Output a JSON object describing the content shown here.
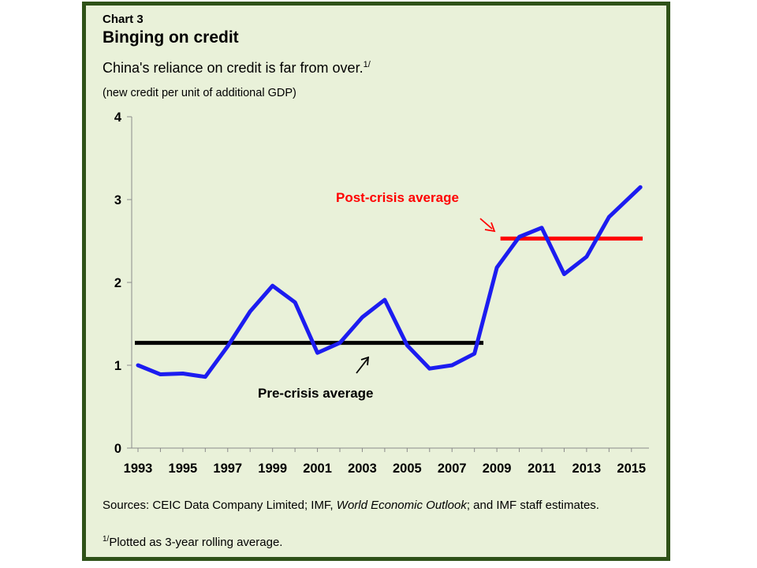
{
  "chart_data": {
    "type": "line",
    "chart_label": "Chart 3",
    "title": "Binging on credit",
    "subtitle": "China's reliance  on credit is far from over.",
    "subtitle_footnote_mark": "1/",
    "ylabel": "(new credit per unit of additional GDP)",
    "xlabel": "",
    "ylim": [
      0,
      4
    ],
    "yticks": [
      "0",
      "1",
      "2",
      "3",
      "4"
    ],
    "xlim": [
      1993,
      2015.5
    ],
    "xtick_labels": [
      "1993",
      "1995",
      "1997",
      "1999",
      "2001",
      "2003",
      "2005",
      "2007",
      "2009",
      "2011",
      "2013",
      "2015"
    ],
    "grid": false,
    "series": [
      {
        "name": "New credit per unit of additional GDP",
        "color": "#1c1cf0",
        "x": [
          1993,
          1994,
          1995,
          1996,
          1997,
          1998,
          1999,
          2000,
          2001,
          2002,
          2003,
          2004,
          2005,
          2006,
          2007,
          2008,
          2009,
          2010,
          2011,
          2012,
          2013,
          2014,
          2015.4
        ],
        "values": [
          1.0,
          0.89,
          0.9,
          0.86,
          1.23,
          1.65,
          1.96,
          1.76,
          1.15,
          1.27,
          1.58,
          1.79,
          1.24,
          0.96,
          1.0,
          1.14,
          2.18,
          2.55,
          2.66,
          2.1,
          2.31,
          2.79,
          3.15
        ]
      }
    ],
    "reference_lines": [
      {
        "name": "Pre-crisis average",
        "color": "#000000",
        "x_start": 1993,
        "x_end": 2008.4,
        "value": 1.27
      },
      {
        "name": "Post-crisis average",
        "color": "#ff0000",
        "x_start": 2009.3,
        "x_end": 2015.5,
        "value": 2.53
      }
    ],
    "annotations": [
      {
        "text": "Post-crisis average",
        "color": "#ff0000"
      },
      {
        "text": "Pre-crisis average",
        "color": "#000000"
      }
    ]
  },
  "footer": {
    "sources_prefix": "Sources: CEIC Data Company Limited; IMF, ",
    "sources_italic": "World Economic Outlook",
    "sources_suffix": "; and IMF staff estimates.",
    "note_mark": "1/",
    "note_text": "Plotted as 3-year rolling average."
  }
}
